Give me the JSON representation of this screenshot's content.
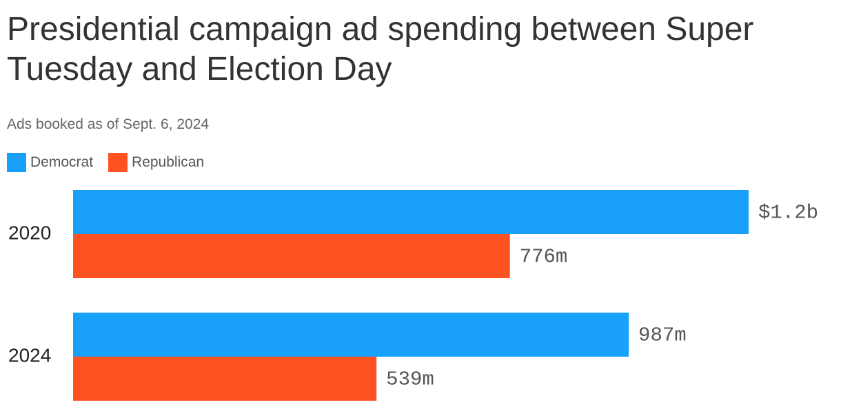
{
  "chart_data": {
    "type": "bar",
    "orientation": "horizontal",
    "title": "Presidential campaign ad spending between Super Tuesday and Election Day",
    "subtitle": "Ads booked as of Sept. 6, 2024",
    "categories": [
      "2020",
      "2024"
    ],
    "series": [
      {
        "name": "Democrat",
        "color": "#18A0FB",
        "values": [
          1200,
          987
        ],
        "labels": [
          "$1.2b",
          "987m"
        ]
      },
      {
        "name": "Republican",
        "color": "#FF5223",
        "values": [
          776,
          539
        ],
        "labels": [
          "776m",
          "539m"
        ]
      }
    ],
    "unit": "millions of dollars",
    "xlim": [
      0,
      1200
    ],
    "grid": false,
    "legend": "top-left"
  }
}
